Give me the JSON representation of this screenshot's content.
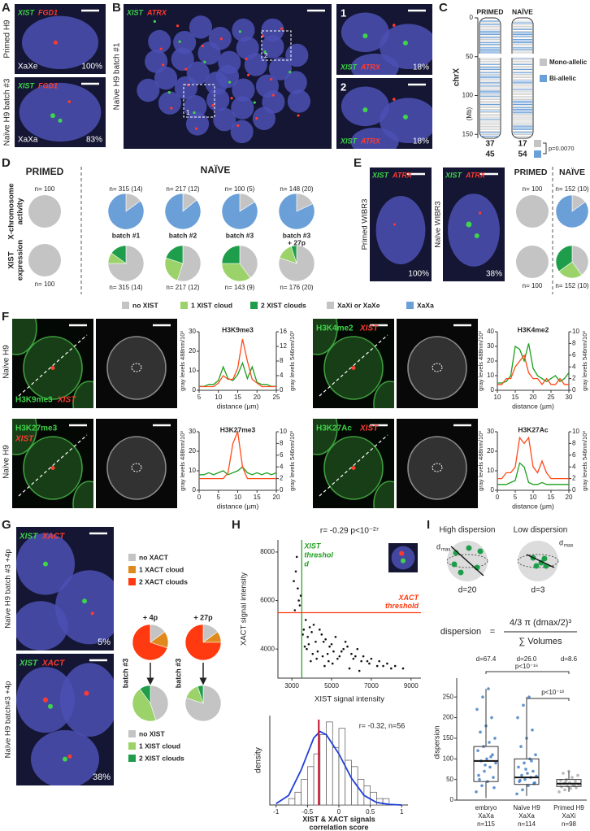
{
  "A": {
    "label": "A",
    "images": [
      {
        "green": "XIST",
        "red": "FGD1",
        "side": "Primed H9",
        "state": "XaXe",
        "percent": "100%"
      },
      {
        "green": "XIST",
        "red": "FGD1",
        "side": "Naïve H9 batch #3",
        "state": "XaXa",
        "percent": "83%"
      }
    ]
  },
  "B": {
    "label": "B",
    "green": "XIST",
    "red": "ATRX",
    "side": "Naïve H9 batch #1",
    "boxes": [
      "1",
      "2"
    ],
    "insets": [
      {
        "number": "1",
        "green": "XIST",
        "red": "ATRX",
        "percent": "18%"
      },
      {
        "number": "2",
        "green": "XIST",
        "red": "ATRX",
        "percent": "18%"
      }
    ]
  },
  "C": {
    "label": "C",
    "columns": [
      "PRIMED",
      "NAÏVE"
    ],
    "axis_label": "chrX",
    "unit": "(Mb)",
    "ylim": [
      0,
      155
    ],
    "yticks": [
      0,
      50,
      100,
      150
    ],
    "legend": [
      {
        "name": "Mono-allelic",
        "color": "#c4c4c4"
      },
      {
        "name": "Bi-allelic",
        "color": "#6a9fd8"
      }
    ],
    "counts": {
      "primed": [
        37,
        45
      ],
      "naive": [
        17,
        54
      ]
    },
    "p_value": "p=0.0070"
  },
  "D": {
    "label": "D",
    "primed": "PRIMED",
    "naive": "NAÏVE",
    "rows": [
      [
        "X-chromosome",
        "activity"
      ],
      [
        "XIST",
        "expression"
      ]
    ],
    "batches": [
      [
        "batch #1"
      ],
      [
        "batch #2"
      ],
      [
        "batch #3"
      ],
      [
        "batch #3",
        "+ 27p"
      ]
    ],
    "activity": {
      "primed": {
        "n": "n= 100",
        "values": [
          100,
          0
        ]
      },
      "naive": [
        {
          "n": "n= 315 (14)",
          "values": [
            15,
            85
          ]
        },
        {
          "n": "n= 217 (12)",
          "values": [
            14,
            86
          ]
        },
        {
          "n": "n= 100 (5)",
          "values": [
            16,
            84
          ]
        },
        {
          "n": "n= 148 (20)",
          "values": [
            18,
            82
          ]
        }
      ]
    },
    "expression": {
      "primed": {
        "n": "n= 100",
        "values": [
          100,
          0,
          0
        ]
      },
      "naive": [
        {
          "n": "n= 315 (14)",
          "values": [
            75,
            10,
            15
          ]
        },
        {
          "n": "n= 217 (12)",
          "values": [
            55,
            25,
            20
          ]
        },
        {
          "n": "n= 143 (9)",
          "values": [
            40,
            35,
            25
          ]
        },
        {
          "n": "n= 176 (20)",
          "values": [
            80,
            15,
            5
          ]
        }
      ]
    },
    "legend": [
      {
        "name": "no XIST",
        "color": "#c4c4c4"
      },
      {
        "name": "1 XIST cloud",
        "color": "#9bd36a"
      },
      {
        "name": "2 XIST clouds",
        "color": "#1e9e4a"
      },
      {
        "name": "XaXi or XaXe",
        "color": "#c4c4c4"
      },
      {
        "name": "XaXa",
        "color": "#6a9fd8"
      }
    ]
  },
  "E": {
    "label": "E",
    "images": [
      {
        "green": "XIST",
        "red": "ATRX",
        "side": "Primed WIBR3",
        "percent": "100%"
      },
      {
        "green": "XIST",
        "red": "ATRX",
        "side": "Naïve WIBR3",
        "percent": "38%"
      }
    ],
    "primed": "PRIMED",
    "naive": "NAÏVE",
    "activity": {
      "primed": {
        "n": "n= 100",
        "values": [
          100,
          0
        ]
      },
      "naive": {
        "n": "n= 152 (10)",
        "values": [
          15,
          85
        ]
      }
    },
    "expression": {
      "primed": {
        "n": "n= 100",
        "values": [
          100,
          0,
          0
        ]
      },
      "naive": {
        "n": "n= 152 (10)",
        "values": [
          40,
          25,
          35
        ]
      }
    }
  },
  "F": {
    "label": "F",
    "rows": [
      "Naïve H9",
      "Naïve H9"
    ],
    "y_label": "gray levels 488nm/10³",
    "y2_label": "gray levels 546nm/10³",
    "x_label": "distance (µm)",
    "panels": [
      {
        "mark": "H3K9me3",
        "probe": "XIST",
        "title": "H3K9me3",
        "xlim": [
          5,
          25
        ],
        "xticks": [
          5,
          10,
          15,
          20,
          25
        ],
        "ylim": [
          0,
          30
        ],
        "yticks": [
          0,
          10,
          20,
          30
        ],
        "y2lim": [
          0,
          16
        ],
        "y2ticks": [
          0,
          4,
          8,
          12,
          16
        ],
        "x": [
          5,
          6.25,
          7.5,
          8.75,
          10,
          11.25,
          12.5,
          13.75,
          15,
          16.25,
          17.5,
          18.75,
          20,
          21.25,
          22.5,
          23.75,
          25
        ],
        "series": [
          {
            "color": "#1e9e1e",
            "values": [
              2,
              2,
              3,
              3,
              5,
              12,
              6,
              5,
              8,
              14,
              6,
              12,
              4,
              3,
              3,
              2,
              2
            ]
          },
          {
            "color": "#ff4a1a",
            "axis": "y2",
            "values": [
              1,
              1,
              1,
              1,
              2,
              4,
              3,
              3,
              6,
              14,
              8,
              3,
              2,
              1,
              1,
              1,
              1
            ]
          }
        ]
      },
      {
        "mark": "H3K4me2",
        "probe": "XIST",
        "title": "H3K4me2",
        "xlim": [
          10,
          30
        ],
        "xticks": [
          10,
          15,
          20,
          25,
          30
        ],
        "ylim": [
          0,
          40
        ],
        "yticks": [
          0,
          10,
          20,
          30,
          40
        ],
        "y2lim": [
          0,
          10
        ],
        "y2ticks": [
          0,
          2,
          4,
          6,
          8,
          10
        ],
        "x": [
          10,
          11.25,
          12.5,
          13.75,
          15,
          16.25,
          17.5,
          18.75,
          20,
          21.25,
          22.5,
          23.75,
          25,
          26.25,
          27.5,
          28.75,
          30
        ],
        "series": [
          {
            "color": "#1e9e1e",
            "values": [
              5,
              5,
              6,
              10,
              30,
              28,
              20,
              32,
              15,
              10,
              8,
              6,
              8,
              10,
              6,
              8,
              12
            ]
          },
          {
            "color": "#ff4a1a",
            "axis": "y2",
            "values": [
              1,
              1,
              2,
              2,
              4,
              5,
              6,
              3,
              2,
              2,
              1,
              2,
              1,
              1,
              2,
              1,
              1
            ]
          }
        ]
      },
      {
        "mark": "H3K27me3",
        "probe": "XIST",
        "title": "H3K27me3",
        "xlim": [
          0,
          20
        ],
        "xticks": [
          0,
          5,
          10,
          15,
          20
        ],
        "ylim": [
          0,
          30
        ],
        "yticks": [
          0,
          10,
          20,
          30
        ],
        "y2lim": [
          0,
          10
        ],
        "y2ticks": [
          0,
          2,
          4,
          6,
          8,
          10
        ],
        "x": [
          0,
          1.25,
          2.5,
          3.75,
          5,
          6.25,
          7.5,
          8.75,
          10,
          11.25,
          12.5,
          13.75,
          15,
          16.25,
          17.5,
          18.75,
          20
        ],
        "series": [
          {
            "color": "#1e9e1e",
            "values": [
              8,
              8,
              9,
              8,
              9,
              10,
              8,
              9,
              10,
              12,
              9,
              8,
              9,
              8,
              9,
              8,
              9
            ]
          },
          {
            "color": "#ff4a1a",
            "axis": "y2",
            "values": [
              2,
              2,
              2,
              2,
              2,
              2,
              3,
              8,
              10,
              4,
              2,
              2,
              2,
              2,
              2,
              2,
              2
            ]
          }
        ]
      },
      {
        "mark": "H3K27Ac",
        "probe": "XIST",
        "title": "H3K27Ac",
        "xlim": [
          0,
          20
        ],
        "xticks": [
          0,
          5,
          10,
          15,
          20
        ],
        "ylim": [
          0,
          30
        ],
        "yticks": [
          0,
          10,
          20,
          30
        ],
        "y2lim": [
          0,
          10
        ],
        "y2ticks": [
          0,
          2,
          4,
          6,
          8,
          10
        ],
        "x": [
          0,
          1.25,
          2.5,
          3.75,
          5,
          6.25,
          7.5,
          8.75,
          10,
          11.25,
          12.5,
          13.75,
          15,
          16.25,
          17.5,
          18.75,
          20
        ],
        "series": [
          {
            "color": "#1e9e1e",
            "values": [
              3,
              3,
              3,
              4,
              5,
              14,
              12,
              4,
              3,
              3,
              4,
              3,
              3,
              3,
              3,
              3,
              3
            ]
          },
          {
            "color": "#ff4a1a",
            "axis": "y2",
            "values": [
              2,
              2,
              3,
              3,
              4,
              9,
              8,
              9,
              4,
              3,
              5,
              3,
              2,
              2,
              2,
              2,
              2
            ]
          }
        ]
      }
    ]
  },
  "G": {
    "label": "G",
    "images": [
      {
        "green": "XIST",
        "red": "XACT",
        "side": "Naïve H9 batch #3 +4p",
        "percent": "5%"
      },
      {
        "green": "XIST",
        "red": "XACT",
        "side": "Naïve H9 batch#3 +4p",
        "percent": "38%"
      }
    ],
    "xact_legend": [
      {
        "name": "no XACT",
        "color": "#c4c4c4"
      },
      {
        "name": "1 XACT cloud",
        "color": "#e08a1e"
      },
      {
        "name": "2 XACT clouds",
        "color": "#ff3a10"
      }
    ],
    "xist_legend": [
      {
        "name": "no XIST",
        "color": "#c4c4c4"
      },
      {
        "name": "1 XIST cloud",
        "color": "#9bd36a"
      },
      {
        "name": "2 XIST clouds",
        "color": "#1e9e4a"
      }
    ],
    "passages": [
      "+ 4p",
      "+ 27p"
    ],
    "batch": "batch #3",
    "xact": [
      [
        15,
        15,
        70
      ],
      [
        15,
        10,
        75
      ]
    ],
    "xist": [
      [
        45,
        45,
        10
      ],
      [
        80,
        15,
        5
      ]
    ]
  },
  "H": {
    "label": "H",
    "scatter": {
      "type": "scatter",
      "title": "r= -0.29 p<10⁻²⁷",
      "x_label": "XIST signal intensity",
      "y_label": "XACT signal intensity",
      "xlim": [
        2300,
        9500
      ],
      "xticks": [
        3000,
        5000,
        7000,
        9000
      ],
      "ylim": [
        2800,
        8500
      ],
      "yticks": [
        4000,
        6000,
        8000
      ],
      "thresholds": {
        "x": 3500,
        "y": 5500
      },
      "x_threshold_label": [
        "XIST",
        "threshol",
        "d"
      ],
      "y_threshold_label": [
        "XACT",
        "threshold"
      ],
      "x": [
        3600,
        3800,
        4000,
        4200,
        4500,
        4700,
        5000,
        5200,
        5500,
        5800,
        6000,
        6300,
        6600,
        7000,
        7400,
        7800,
        8200,
        8600,
        3700,
        3900,
        4100,
        4400,
        4600,
        4900,
        5100,
        5400,
        5700,
        6100,
        6500,
        6900,
        7300,
        3300,
        3200,
        3400,
        3100,
        3250,
        3350,
        3150,
        3450,
        4300,
        4800,
        5300,
        5600,
        6200,
        6800,
        7600,
        8000,
        3650,
        3850,
        4050,
        4250,
        4550,
        4850,
        5050,
        3550,
        3750,
        3950,
        4650,
        5900,
        6400
      ],
      "values": [
        4800,
        4500,
        4700,
        4300,
        4600,
        4400,
        4200,
        4500,
        3900,
        4100,
        3800,
        4000,
        3700,
        3600,
        3500,
        3400,
        3300,
        3200,
        5200,
        4900,
        5000,
        4800,
        4300,
        4100,
        3900,
        3700,
        4300,
        3600,
        3500,
        3400,
        3300,
        6500,
        7200,
        5800,
        6800,
        7800,
        6000,
        5600,
        6200,
        3900,
        3800,
        3600,
        4000,
        3700,
        3500,
        3300,
        3200,
        4100,
        4200,
        3800,
        3600,
        3700,
        3500,
        3400,
        4600,
        4000,
        3500,
        3300,
        3200,
        3100
      ]
    },
    "histogram": {
      "type": "histogram",
      "annotation": "r= -0.32, n=56",
      "y_label": "density",
      "x_label": [
        "XIST & XACT signals",
        "correlation score"
      ],
      "xlim": [
        -1.1,
        1.1
      ],
      "xticks": [
        -1,
        -0.5,
        0,
        0.5,
        1
      ],
      "ylim": [
        0,
        1.4
      ],
      "bins": [
        -1,
        -0.9,
        -0.8,
        -0.7,
        -0.6,
        -0.5,
        -0.4,
        -0.3,
        -0.2,
        -0.1,
        0,
        0.1,
        0.2,
        0.3,
        0.4,
        0.5,
        0.6,
        0.7,
        0.8,
        0.9,
        1
      ],
      "counts": [
        0,
        0,
        0.1,
        0.2,
        0.4,
        0.6,
        0.8,
        1.1,
        1.3,
        0.9,
        1.2,
        0.7,
        0.6,
        0.4,
        0.3,
        0.2,
        0.1,
        0.1,
        0,
        0
      ],
      "mean": -0.32,
      "fit": {
        "x": [
          -1,
          -0.8,
          -0.6,
          -0.4,
          -0.3,
          -0.2,
          0,
          0.2,
          0.4,
          0.6,
          0.8,
          1
        ],
        "values": [
          0.02,
          0.15,
          0.55,
          1.05,
          1.15,
          1.1,
          0.8,
          0.42,
          0.15,
          0.04,
          0.01,
          0
        ]
      }
    }
  },
  "I": {
    "label": "I",
    "high": "High dispersion",
    "low": "Low dispersion",
    "dmax": "d",
    "dmax_sub": "max",
    "d_high": "d=20",
    "d_low": "d=3",
    "lhs": "dispersion",
    "eq": "=",
    "numerator": "4/3 π (dmax/2)³",
    "denominator": "∑ Volumes",
    "box": {
      "type": "box",
      "y_label": "dispersion",
      "ylim": [
        0,
        280
      ],
      "yticks": [
        0,
        50,
        100,
        150,
        200,
        250
      ],
      "categories": [
        [
          "embryo",
          "XaXa",
          "n=115"
        ],
        [
          "Naïve H9",
          "XaXa",
          "n=114"
        ],
        [
          "Primed H9",
          "XaXi",
          "n=98"
        ]
      ],
      "d_labels": [
        "d=67.4",
        "d=26.0",
        "d=8.6"
      ],
      "p_values": [
        "p<10⁻¹⁶",
        "p<10⁻¹³"
      ],
      "colors": [
        "#3a78c0",
        "#3a78c0",
        "#a8a8a8"
      ],
      "boxes": [
        {
          "whisker_low": 5,
          "q1": 45,
          "median": 95,
          "q3": 130,
          "whisker_high": 270
        },
        {
          "whisker_low": 10,
          "q1": 38,
          "median": 55,
          "q3": 100,
          "whisker_high": 250
        },
        {
          "whisker_low": 20,
          "q1": 33,
          "median": 40,
          "q3": 50,
          "whisker_high": 70
        }
      ],
      "points": [
        [
          20,
          35,
          45,
          55,
          60,
          70,
          80,
          90,
          95,
          100,
          110,
          120,
          130,
          140,
          150,
          165,
          180,
          200,
          220,
          250,
          270,
          30,
          50,
          85,
          105
        ],
        [
          15,
          25,
          35,
          40,
          45,
          50,
          55,
          58,
          60,
          65,
          70,
          80,
          90,
          100,
          110,
          130,
          150,
          170,
          200,
          230,
          250,
          42,
          48,
          75,
          95
        ],
        [
          20,
          25,
          28,
          30,
          32,
          34,
          36,
          38,
          40,
          42,
          45,
          48,
          50,
          55,
          60,
          65,
          70,
          35,
          39,
          44
        ]
      ]
    }
  }
}
